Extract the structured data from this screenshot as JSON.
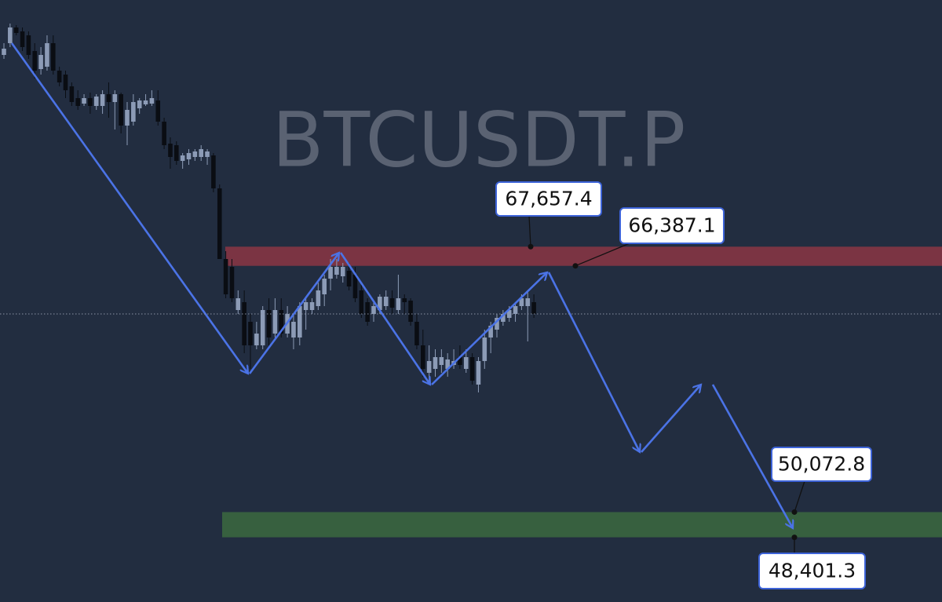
{
  "chart_data": {
    "type": "candlestick",
    "title": "BTCUSDT.P",
    "ylim": [
      44116,
      84000
    ],
    "up_color": "#8c9bb6",
    "down_color": "#0a0d13",
    "last_price_line": true,
    "open": [
      80360,
      81140,
      82180,
      81920,
      81660,
      80620,
      79424,
      79580,
      81140,
      79320,
      79060,
      78280,
      77500,
      77136,
      77500,
      76980,
      76980,
      77760,
      77240,
      77760,
      75680,
      75940,
      76824,
      77084,
      77136,
      77344,
      75940,
      74484,
      74380,
      73340,
      73444,
      73600,
      73600,
      73600,
      73704,
      71520,
      66840,
      66320,
      63460,
      63980,
      62680,
      61120,
      61120,
      63460,
      61900,
      63460,
      61900,
      61640,
      61640,
      63460,
      63460,
      63720,
      64500,
      65540,
      65800,
      65696,
      66060,
      65800,
      64760,
      63980,
      63200,
      63460,
      63720,
      64240,
      63460,
      64240,
      64084,
      62680,
      61120,
      59300,
      59560,
      59820,
      59560,
      59820,
      60340,
      59560,
      60340,
      58520,
      60080,
      61640,
      62160,
      62680,
      62940,
      63200,
      63720,
      63720,
      63980
    ],
    "high": [
      81140,
      82440,
      82336,
      82180,
      81920,
      81140,
      80880,
      81660,
      81660,
      79580,
      79320,
      78540,
      78020,
      77760,
      77864,
      77760,
      78020,
      78540,
      78020,
      77864,
      77240,
      77760,
      77500,
      77760,
      78020,
      78020,
      76200,
      74900,
      74640,
      73860,
      74120,
      74120,
      74380,
      74120,
      73860,
      71780,
      67360,
      66840,
      64760,
      64760,
      63200,
      62680,
      63720,
      64240,
      64240,
      64240,
      63720,
      63200,
      63980,
      64240,
      64240,
      65280,
      65800,
      66840,
      66840,
      66580,
      66580,
      66320,
      65280,
      64240,
      63980,
      64500,
      64760,
      64760,
      65800,
      64500,
      64240,
      63200,
      62160,
      61120,
      60860,
      60860,
      60600,
      60860,
      61120,
      60860,
      60600,
      60340,
      62160,
      62680,
      63200,
      63460,
      63720,
      63980,
      64500,
      64760,
      64500
    ],
    "low": [
      80100,
      80880,
      81660,
      80620,
      80100,
      78800,
      79060,
      79320,
      79060,
      78280,
      77500,
      76980,
      76720,
      76980,
      76460,
      76720,
      76460,
      76200,
      75420,
      75160,
      74380,
      75680,
      76460,
      76980,
      76980,
      75680,
      74120,
      72820,
      73080,
      72820,
      73080,
      73340,
      73340,
      73080,
      71260,
      66840,
      64240,
      63980,
      63200,
      60600,
      59560,
      60860,
      60860,
      61120,
      61640,
      61640,
      61640,
      60860,
      61120,
      62160,
      63200,
      63460,
      63720,
      64760,
      65540,
      65280,
      64760,
      63980,
      62940,
      62420,
      62680,
      63200,
      63460,
      63200,
      63200,
      63200,
      62420,
      60860,
      59040,
      58520,
      59040,
      59300,
      59040,
      59560,
      59560,
      59300,
      58520,
      58000,
      59560,
      60600,
      61640,
      62420,
      62680,
      62680,
      63460,
      61380,
      62940
    ],
    "close": [
      80776,
      82180,
      81816,
      80880,
      80360,
      79320,
      80360,
      81140,
      79320,
      78540,
      78020,
      77240,
      76980,
      77500,
      76980,
      77604,
      77760,
      77240,
      77760,
      75680,
      76720,
      77240,
      77344,
      77344,
      77500,
      75940,
      74380,
      73600,
      73340,
      73704,
      73860,
      73964,
      74120,
      73964,
      71520,
      66840,
      64500,
      64240,
      64240,
      61120,
      61120,
      61900,
      63460,
      61640,
      63460,
      61900,
      63200,
      62680,
      63720,
      63980,
      63980,
      64760,
      65540,
      66320,
      66320,
      66320,
      65020,
      64240,
      63200,
      62680,
      63720,
      64344,
      64344,
      63616,
      64240,
      63980,
      62680,
      61120,
      59560,
      60080,
      60340,
      60340,
      60184,
      60080,
      59820,
      60340,
      58780,
      60080,
      61640,
      62420,
      62940,
      63200,
      63460,
      63720,
      64240,
      64240,
      63200
    ],
    "zones": [
      {
        "color": "#7b3443",
        "levels": [
          {
            "value": 67657.4,
            "label": "67,657.4"
          },
          {
            "value": 66387.1,
            "label": "66,387.1"
          }
        ]
      },
      {
        "color": "#37603f",
        "levels": [
          {
            "value": 50072.8,
            "label": "50,072.8"
          },
          {
            "value": 48401.3,
            "label": "48,401.3"
          }
        ]
      }
    ]
  }
}
